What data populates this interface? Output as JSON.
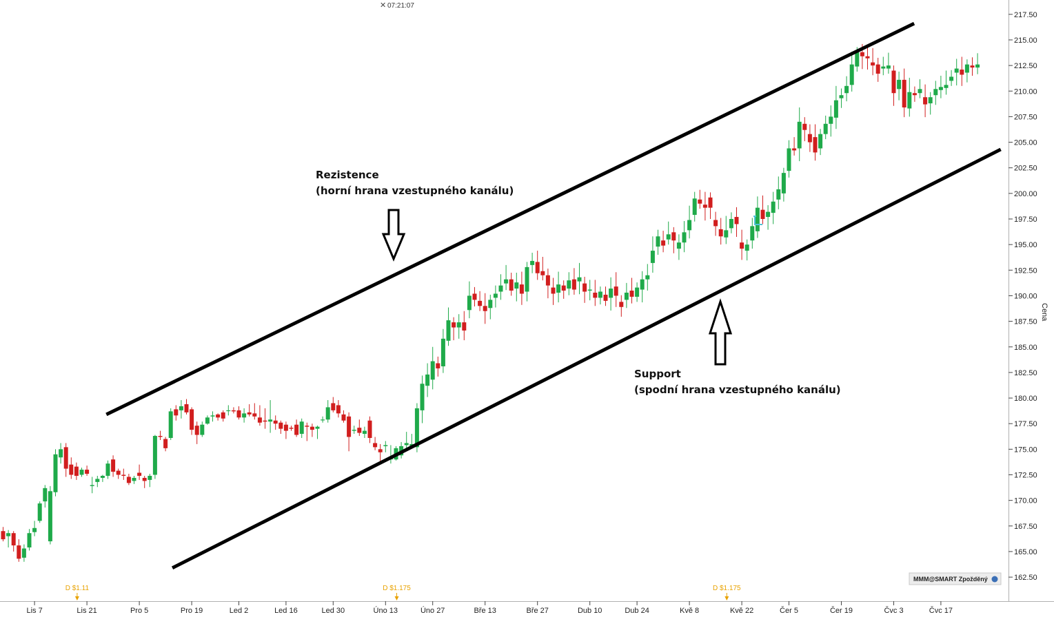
{
  "chart_data": {
    "type": "candlestick",
    "clock": "07:21:07",
    "ylabel": "Cena",
    "ylim": [
      161.0,
      219.0
    ],
    "y_ticks": [
      162.5,
      165.0,
      167.5,
      170.0,
      172.5,
      175.0,
      177.5,
      180.0,
      182.5,
      185.0,
      187.5,
      190.0,
      192.5,
      195.0,
      197.5,
      200.0,
      202.5,
      205.0,
      207.5,
      210.0,
      212.5,
      215.0,
      217.5
    ],
    "y_tick_labels": [
      "162.50",
      "165.00",
      "167.50",
      "170.00",
      "172.50",
      "175.00",
      "177.50",
      "180.00",
      "182.50",
      "185.00",
      "187.50",
      "190.00",
      "192.50",
      "195.00",
      "197.50",
      "200.00",
      "202.50",
      "205.00",
      "207.50",
      "210.00",
      "212.50",
      "215.00",
      "217.50"
    ],
    "x_ticks": [
      {
        "label": "Lis 7",
        "index": 6
      },
      {
        "label": "Lis 21",
        "index": 16
      },
      {
        "label": "Pro 5",
        "index": 26
      },
      {
        "label": "Pro 19",
        "index": 36
      },
      {
        "label": "Led 2",
        "index": 45
      },
      {
        "label": "Led 16",
        "index": 54
      },
      {
        "label": "Led 30",
        "index": 63
      },
      {
        "label": "Úno 13",
        "index": 73
      },
      {
        "label": "Úno 27",
        "index": 82
      },
      {
        "label": "Bře 13",
        "index": 92
      },
      {
        "label": "Bře 27",
        "index": 102
      },
      {
        "label": "Dub 10",
        "index": 112
      },
      {
        "label": "Dub 24",
        "index": 121
      },
      {
        "label": "Kvě 8",
        "index": 131
      },
      {
        "label": "Kvě 22",
        "index": 141
      },
      {
        "label": "Čer 5",
        "index": 150
      },
      {
        "label": "Čer 19",
        "index": 160
      },
      {
        "label": "Čvc 3",
        "index": 170
      },
      {
        "label": "Čvc 17",
        "index": 179
      }
    ],
    "dividends": [
      {
        "label": "D $1.11",
        "index": 14
      },
      {
        "label": "D $1.175",
        "index": 75
      },
      {
        "label": "D $1.175",
        "index": 138
      }
    ],
    "channel": {
      "resistance": {
        "from": {
          "index": 18,
          "value": 178.4
        },
        "to": {
          "index": 166,
          "value": 216.6
        }
      },
      "support": {
        "from": {
          "index": 31,
          "value": 163.4
        },
        "to": {
          "index": 182,
          "value": 204.3
        }
      }
    },
    "annotations": [
      {
        "id": "resistance",
        "title": "Rezistence",
        "subtitle": "(horní hrana vzestupného kanálu)",
        "arrow": "down"
      },
      {
        "id": "support",
        "title": "Support",
        "subtitle": "(spodní hrana vzestupného kanálu)",
        "arrow": "up"
      }
    ],
    "series": [
      {
        "candles": [
          [
            167.0,
            167.4,
            166.0,
            166.2
          ],
          [
            166.5,
            167.1,
            165.4,
            166.8
          ],
          [
            166.8,
            167.0,
            165.0,
            165.6
          ],
          [
            165.6,
            166.2,
            164.0,
            164.3
          ],
          [
            164.4,
            165.7,
            164.0,
            165.3
          ],
          [
            165.4,
            167.2,
            165.1,
            166.8
          ],
          [
            166.9,
            168.0,
            166.5,
            167.3
          ],
          [
            168.0,
            169.9,
            167.8,
            169.7
          ],
          [
            169.9,
            171.5,
            169.3,
            171.2
          ],
          [
            166.0,
            171.4,
            165.7,
            170.9
          ],
          [
            170.8,
            175.0,
            170.4,
            174.5
          ],
          [
            174.2,
            175.6,
            173.6,
            175.0
          ],
          [
            175.2,
            175.6,
            172.3,
            173.1
          ],
          [
            173.5,
            174.2,
            172.1,
            172.5
          ],
          [
            173.3,
            173.7,
            172.0,
            172.4
          ],
          [
            172.5,
            173.2,
            172.3,
            173.0
          ],
          [
            173.0,
            173.4,
            172.4,
            172.6
          ],
          [
            171.4,
            172.3,
            170.7,
            171.5
          ],
          [
            171.8,
            172.4,
            171.3,
            172.1
          ],
          [
            172.2,
            172.5,
            171.8,
            172.4
          ],
          [
            172.4,
            173.9,
            172.1,
            173.6
          ],
          [
            174.0,
            174.4,
            172.3,
            172.8
          ],
          [
            172.9,
            173.1,
            172.1,
            172.5
          ],
          [
            172.5,
            173.1,
            172.0,
            172.4
          ],
          [
            172.3,
            172.6,
            171.5,
            171.7
          ],
          [
            171.9,
            172.4,
            171.6,
            172.2
          ],
          [
            172.7,
            173.5,
            172.0,
            172.4
          ],
          [
            172.2,
            172.4,
            171.2,
            171.9
          ],
          [
            172.0,
            172.6,
            171.3,
            172.4
          ],
          [
            172.5,
            176.4,
            172.1,
            176.3
          ],
          [
            176.3,
            176.8,
            175.9,
            176.2
          ],
          [
            176.0,
            176.2,
            174.8,
            175.1
          ],
          [
            176.1,
            179.0,
            175.9,
            178.7
          ],
          [
            178.9,
            179.3,
            177.8,
            178.3
          ],
          [
            178.8,
            179.8,
            178.0,
            179.2
          ],
          [
            179.4,
            179.9,
            178.4,
            178.6
          ],
          [
            178.9,
            179.1,
            176.4,
            176.9
          ],
          [
            177.3,
            177.7,
            175.5,
            176.4
          ],
          [
            176.4,
            177.7,
            176.2,
            177.4
          ],
          [
            177.5,
            178.3,
            177.4,
            178.1
          ],
          [
            178.2,
            178.7,
            177.7,
            178.3
          ],
          [
            178.4,
            178.5,
            177.8,
            178.1
          ],
          [
            178.6,
            178.8,
            177.7,
            178.0
          ],
          [
            178.8,
            179.3,
            178.3,
            178.8
          ],
          [
            178.8,
            179.1,
            178.5,
            178.7
          ],
          [
            178.8,
            179.2,
            177.9,
            178.1
          ],
          [
            178.1,
            179.0,
            177.6,
            178.5
          ],
          [
            178.6,
            179.4,
            178.2,
            178.4
          ],
          [
            178.5,
            179.5,
            177.9,
            178.2
          ],
          [
            178.1,
            179.3,
            177.3,
            177.6
          ],
          [
            177.8,
            179.0,
            177.0,
            177.7
          ],
          [
            177.7,
            179.8,
            176.6,
            177.9
          ],
          [
            177.8,
            178.3,
            176.9,
            177.5
          ],
          [
            177.6,
            177.8,
            176.5,
            177.0
          ],
          [
            177.4,
            177.7,
            176.0,
            176.8
          ],
          [
            177.1,
            177.3,
            176.8,
            177.0
          ],
          [
            177.4,
            177.9,
            176.2,
            176.4
          ],
          [
            176.5,
            178.0,
            176.1,
            177.7
          ],
          [
            177.3,
            177.6,
            175.8,
            177.2
          ],
          [
            177.2,
            177.5,
            176.2,
            176.9
          ],
          [
            177.0,
            177.3,
            176.0,
            177.2
          ],
          [
            177.9,
            178.2,
            177.6,
            177.9
          ],
          [
            177.9,
            179.8,
            177.6,
            179.1
          ],
          [
            179.5,
            180.1,
            178.6,
            178.8
          ],
          [
            179.3,
            179.8,
            178.1,
            178.5
          ],
          [
            178.4,
            178.8,
            177.6,
            177.8
          ],
          [
            178.2,
            178.6,
            174.8,
            176.2
          ],
          [
            176.8,
            177.3,
            176.5,
            176.9
          ],
          [
            177.1,
            177.9,
            176.3,
            176.6
          ],
          [
            176.5,
            177.2,
            176.1,
            176.8
          ],
          [
            177.8,
            178.2,
            175.6,
            176.1
          ],
          [
            175.6,
            176.2,
            174.9,
            175.2
          ],
          [
            175.0,
            175.5,
            173.8,
            174.7
          ],
          [
            175.3,
            175.8,
            174.7,
            175.4
          ],
          [
            174.0,
            175.4,
            173.6,
            174.2
          ],
          [
            174.0,
            175.3,
            173.9,
            175.1
          ],
          [
            174.4,
            175.7,
            174.1,
            175.3
          ],
          [
            175.4,
            176.7,
            175.1,
            175.6
          ],
          [
            175.3,
            176.5,
            175.1,
            175.5
          ]
        ]
      }
    ],
    "badge": "MMM@SMART Zpožděný"
  }
}
